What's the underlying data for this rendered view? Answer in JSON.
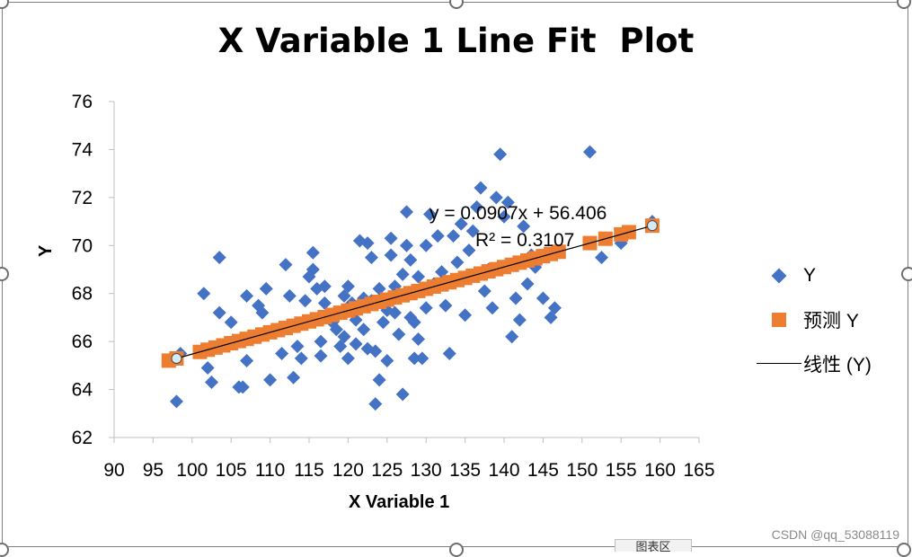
{
  "chart_data": {
    "type": "scatter",
    "title": "X Variable 1 Line Fit  Plot",
    "xlabel": "X Variable 1",
    "ylabel": "Y",
    "xlim": [
      90,
      165
    ],
    "ylim": [
      62,
      76
    ],
    "x_ticks": [
      90,
      95,
      100,
      105,
      110,
      115,
      120,
      125,
      130,
      135,
      140,
      145,
      150,
      155,
      160,
      165
    ],
    "y_ticks": [
      62,
      64,
      66,
      68,
      70,
      72,
      74,
      76
    ],
    "grid": false,
    "legend_position": "right",
    "series": [
      {
        "name": "Y",
        "marker": "diamond",
        "color": "#4472c4",
        "points": [
          [
            98,
            63.5
          ],
          [
            98.5,
            65.5
          ],
          [
            101.5,
            68
          ],
          [
            102,
            64.9
          ],
          [
            102.5,
            64.3
          ],
          [
            103.5,
            69.5
          ],
          [
            103.5,
            67.2
          ],
          [
            105,
            66.8
          ],
          [
            106,
            64.1
          ],
          [
            106.5,
            64.1
          ],
          [
            107,
            67.9
          ],
          [
            107,
            65.2
          ],
          [
            108.5,
            67.5
          ],
          [
            109,
            67.2
          ],
          [
            109.5,
            68.2
          ],
          [
            110,
            64.4
          ],
          [
            111,
            66.5
          ],
          [
            111.5,
            65.5
          ],
          [
            112,
            69.2
          ],
          [
            112.5,
            67.9
          ],
          [
            113,
            64.5
          ],
          [
            113.5,
            65.8
          ],
          [
            114,
            65.3
          ],
          [
            114.5,
            67.7
          ],
          [
            115,
            68.7
          ],
          [
            115.5,
            69
          ],
          [
            115.5,
            69.7
          ],
          [
            116,
            68.2
          ],
          [
            116.5,
            66
          ],
          [
            116.5,
            65.4
          ],
          [
            117,
            68.3
          ],
          [
            117,
            67.6
          ],
          [
            118,
            66.8
          ],
          [
            118.5,
            66.5
          ],
          [
            119,
            65.8
          ],
          [
            119.5,
            67.9
          ],
          [
            119.5,
            66.2
          ],
          [
            120,
            68.3
          ],
          [
            120,
            65.3
          ],
          [
            120.5,
            67.6
          ],
          [
            121,
            65.9
          ],
          [
            121,
            66.9
          ],
          [
            121.5,
            70.2
          ],
          [
            122,
            67.8
          ],
          [
            122,
            66.5
          ],
          [
            122.5,
            70.1
          ],
          [
            122.5,
            65.7
          ],
          [
            123,
            67.7
          ],
          [
            123,
            69.5
          ],
          [
            123.5,
            63.4
          ],
          [
            123.5,
            65.6
          ],
          [
            124,
            68.2
          ],
          [
            124,
            64.4
          ],
          [
            124.5,
            66.8
          ],
          [
            125,
            65.2
          ],
          [
            125,
            67.3
          ],
          [
            125.5,
            69.6
          ],
          [
            125.5,
            70.3
          ],
          [
            126,
            68.3
          ],
          [
            126,
            67.2
          ],
          [
            126.5,
            66.3
          ],
          [
            127,
            68.8
          ],
          [
            127,
            63.8
          ],
          [
            127.5,
            71.4
          ],
          [
            127.5,
            70
          ],
          [
            128,
            69.4
          ],
          [
            128,
            67
          ],
          [
            128.5,
            65.3
          ],
          [
            128.5,
            66.8
          ],
          [
            129,
            68.7
          ],
          [
            129,
            66.1
          ],
          [
            129.5,
            65.3
          ],
          [
            130,
            67.4
          ],
          [
            130,
            70
          ],
          [
            130.5,
            71.3
          ],
          [
            131,
            68.4
          ],
          [
            131.5,
            70.4
          ],
          [
            132,
            68.9
          ],
          [
            132.5,
            67.5
          ],
          [
            133,
            65.5
          ],
          [
            133.5,
            70.4
          ],
          [
            134,
            69.3
          ],
          [
            134.5,
            70.9
          ],
          [
            135,
            67.1
          ],
          [
            135.5,
            69.8
          ],
          [
            136,
            70.6
          ],
          [
            136.5,
            71.6
          ],
          [
            137,
            72.4
          ],
          [
            137.5,
            68.1
          ],
          [
            138,
            69
          ],
          [
            138.5,
            67.4
          ],
          [
            139,
            72
          ],
          [
            139.5,
            73.8
          ],
          [
            140,
            71.2
          ],
          [
            140.5,
            71.8
          ],
          [
            141,
            66.2
          ],
          [
            141.5,
            67.8
          ],
          [
            142,
            66.9
          ],
          [
            142.5,
            70.8
          ],
          [
            143,
            68.4
          ],
          [
            143.5,
            69.6
          ],
          [
            144,
            69.1
          ],
          [
            145,
            67.8
          ],
          [
            146,
            67
          ],
          [
            146.5,
            67.4
          ],
          [
            151,
            73.9
          ],
          [
            152.5,
            69.5
          ],
          [
            155,
            70.1
          ],
          [
            159,
            71
          ]
        ]
      },
      {
        "name": "预测 Y",
        "marker": "square",
        "color": "#ed7d31",
        "x": [
          97,
          98,
          101,
          102,
          103,
          104,
          105,
          106,
          107,
          108,
          109,
          110,
          111,
          112,
          113,
          114,
          115,
          116,
          117,
          118,
          119,
          120,
          121,
          122,
          123,
          124,
          125,
          126,
          127,
          128,
          129,
          130,
          131,
          132,
          133,
          134,
          135,
          136,
          137,
          138,
          139,
          140,
          141,
          142,
          143,
          144,
          145,
          146,
          147,
          151,
          153,
          155,
          156,
          159
        ]
      },
      {
        "name": "线性 (Y)",
        "type": "trendline",
        "color": "#000000",
        "x_range": [
          98,
          159
        ],
        "slope": 0.0907,
        "intercept": 56.406
      }
    ],
    "annotations": {
      "equation": "y = 0.0907x + 56.406",
      "r_squared": "R² = 0.3107"
    }
  },
  "ui": {
    "watermark": "CSDN @qq_53088119",
    "tab_label": "图表区"
  }
}
